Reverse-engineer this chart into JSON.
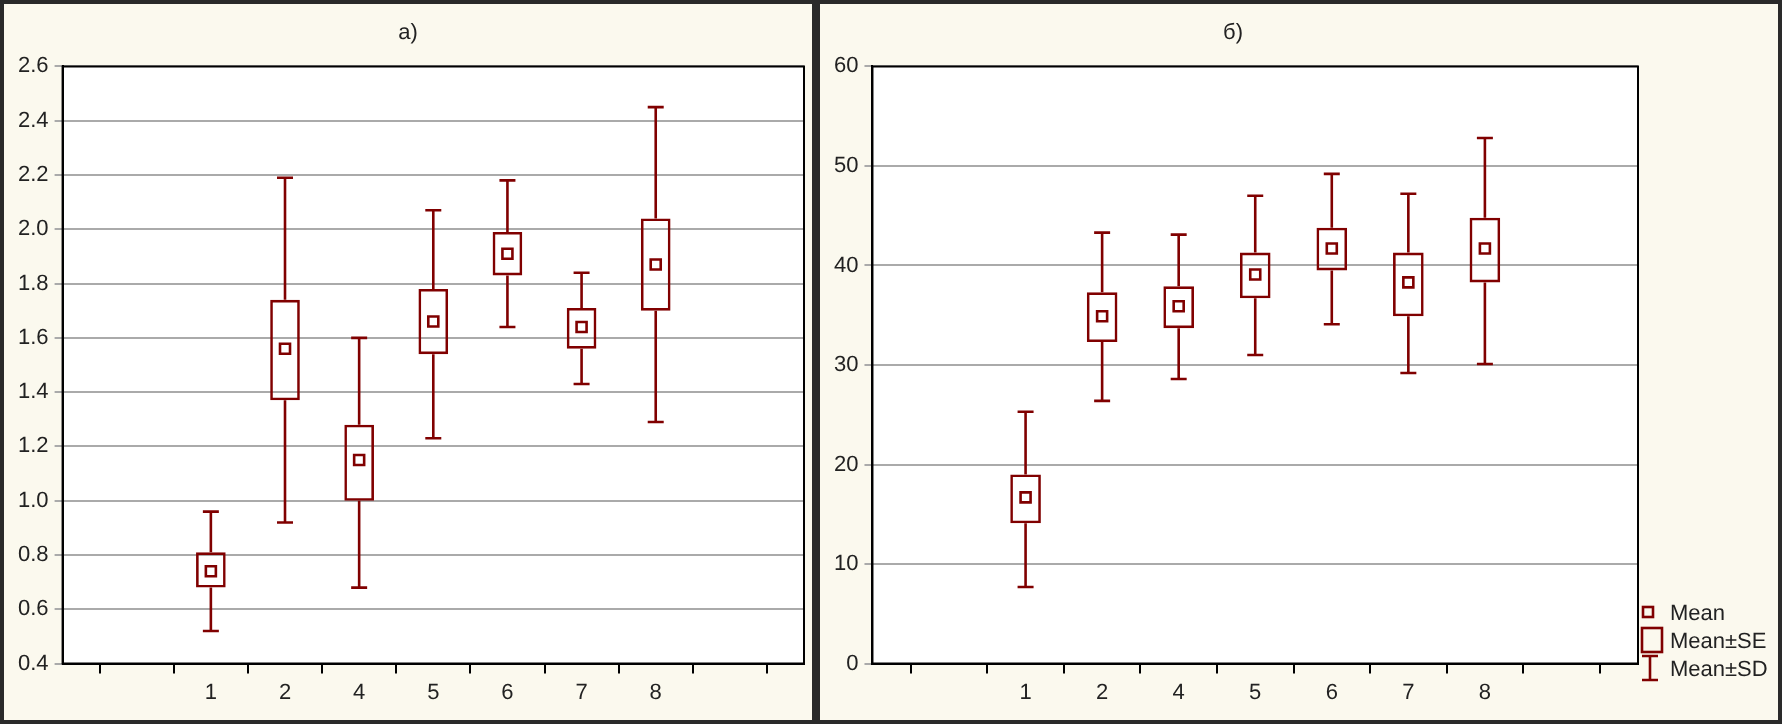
{
  "chart_data": [
    {
      "type": "box",
      "title": "a)",
      "categories": [
        null,
        null,
        "1",
        "2",
        "4",
        "5",
        "6",
        "7",
        "8",
        null,
        null
      ],
      "series": [
        {
          "color": "#800000",
          "boxes": [
            null,
            null,
            {
              "low": 0.52,
              "q1": 0.68,
              "median": 0.74,
              "q3": 0.81,
              "high": 0.96
            },
            {
              "low": 0.92,
              "q1": 1.37,
              "median": 1.56,
              "q3": 1.74,
              "high": 2.19
            },
            {
              "low": 0.68,
              "q1": 1.0,
              "median": 1.15,
              "q3": 1.28,
              "high": 1.6
            },
            {
              "low": 1.23,
              "q1": 1.54,
              "median": 1.66,
              "q3": 1.78,
              "high": 2.07
            },
            {
              "low": 1.64,
              "q1": 1.83,
              "median": 1.91,
              "q3": 1.99,
              "high": 2.18
            },
            {
              "low": 1.43,
              "q1": 1.56,
              "median": 1.64,
              "q3": 1.71,
              "high": 1.84
            },
            {
              "low": 1.29,
              "q1": 1.7,
              "median": 1.87,
              "q3": 2.04,
              "high": 2.45
            },
            null,
            null
          ]
        }
      ],
      "ylim": [
        0.4,
        2.6
      ],
      "yticks": [
        0.4,
        0.6,
        0.8,
        {
          "value": 1,
          "label": "1.0"
        },
        1.2,
        1.4,
        1.6,
        1.8,
        {
          "value": 2,
          "label": "2.0"
        },
        2.2,
        2.4,
        2.6
      ],
      "grid": "y"
    },
    {
      "type": "box",
      "title": "б)",
      "categories": [
        null,
        null,
        "1",
        "2",
        "4",
        "5",
        "6",
        "7",
        "8",
        null,
        null
      ],
      "series": [
        {
          "color": "#800000",
          "boxes": [
            null,
            null,
            {
              "low": 7.7,
              "q1": 14.1,
              "median": 16.7,
              "q3": 19.0,
              "high": 25.3
            },
            {
              "low": 26.4,
              "q1": 32.3,
              "median": 34.9,
              "q3": 37.3,
              "high": 43.3
            },
            {
              "low": 28.6,
              "q1": 33.7,
              "median": 35.9,
              "q3": 37.9,
              "high": 43.1
            },
            {
              "low": 31.0,
              "q1": 36.7,
              "median": 39.1,
              "q3": 41.3,
              "high": 47.0
            },
            {
              "low": 34.1,
              "q1": 39.5,
              "median": 41.7,
              "q3": 43.8,
              "high": 49.2
            },
            {
              "low": 29.2,
              "q1": 34.9,
              "median": 38.3,
              "q3": 41.3,
              "high": 47.2
            },
            {
              "low": 30.1,
              "q1": 38.3,
              "median": 41.7,
              "q3": 44.8,
              "high": 52.8
            },
            null,
            null
          ]
        }
      ],
      "ylim": [
        0,
        60
      ],
      "yticks": [
        0,
        10,
        20,
        30,
        40,
        50,
        60
      ],
      "grid": "y",
      "annotations": [
        "Mean",
        "Mean±SE",
        "Mean±SD"
      ]
    }
  ]
}
